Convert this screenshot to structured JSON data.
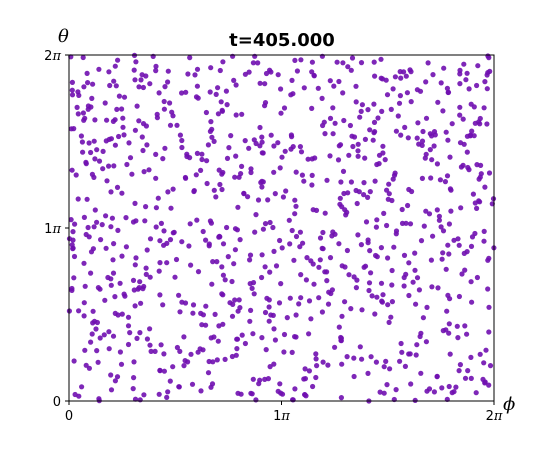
{
  "chart_data": {
    "type": "scatter",
    "title": "t=405.000",
    "xlabel": "ϕ",
    "ylabel": "θ",
    "xlim": [
      0,
      6.283185
    ],
    "ylim": [
      0,
      6.283185
    ],
    "x_tick_values": [
      0,
      3.141593,
      6.283185
    ],
    "y_tick_values": [
      0,
      3.141593,
      6.283185
    ],
    "x_tick_labels": [
      {
        "base": "0",
        "sym": ""
      },
      {
        "base": "1",
        "sym": "π"
      },
      {
        "base": "2",
        "sym": "π"
      }
    ],
    "y_tick_labels": [
      {
        "base": "0",
        "sym": ""
      },
      {
        "base": "1",
        "sym": "π"
      },
      {
        "base": "2",
        "sym": "π"
      }
    ],
    "point_color": "#7010b0",
    "grid": false,
    "legend": "none",
    "point_count": 1000,
    "note_on_points": "points approximately uniformly distributed over [0, 2π] × [0, 2π]; positions not individually readable"
  }
}
